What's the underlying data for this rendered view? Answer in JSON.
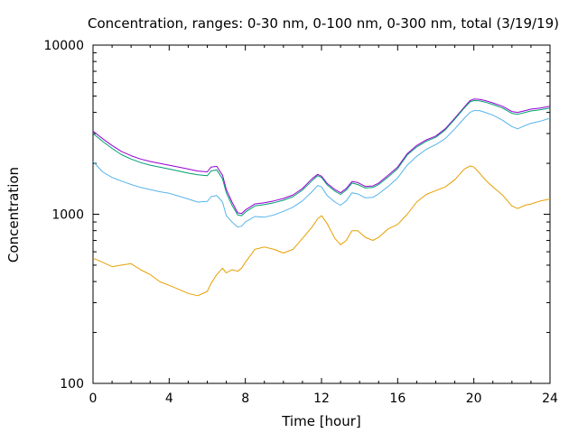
{
  "chart_data": {
    "type": "line",
    "title": "Concentration, ranges: 0-30 nm, 0-100 nm, 0-300 nm, total (3/19/19)",
    "xlabel": "Time [hour]",
    "ylabel": "Concentration",
    "xlim": [
      0,
      24
    ],
    "ylim": [
      100,
      10000
    ],
    "yscale": "log",
    "grid": false,
    "legend": "none",
    "x_ticks": [
      "0",
      "4",
      "8",
      "12",
      "16",
      "20",
      "24"
    ],
    "y_ticks": [
      "100",
      "1000",
      "10000"
    ],
    "x_tick_values": [
      0,
      4,
      8,
      12,
      16,
      20,
      24
    ],
    "y_tick_values": [
      100,
      1000,
      10000
    ],
    "x": [
      0,
      0.5,
      1,
      1.5,
      2,
      2.5,
      3,
      3.5,
      4,
      4.5,
      5,
      5.5,
      6,
      6.2,
      6.5,
      6.8,
      7,
      7.3,
      7.6,
      7.8,
      8,
      8.5,
      9,
      9.5,
      10,
      10.5,
      11,
      11.5,
      11.8,
      12,
      12.3,
      12.7,
      13,
      13.3,
      13.6,
      13.9,
      14.3,
      14.7,
      15,
      15.5,
      16,
      16.5,
      17,
      17.5,
      18,
      18.5,
      19,
      19.5,
      19.8,
      20,
      20.3,
      20.6,
      21,
      21.5,
      22,
      22.3,
      22.7,
      23,
      23.5,
      24
    ],
    "series": [
      {
        "color": "#9400d3",
        "values": [
          3100,
          2800,
          2550,
          2350,
          2220,
          2120,
          2050,
          2000,
          1950,
          1900,
          1850,
          1800,
          1780,
          1900,
          1920,
          1700,
          1400,
          1180,
          1020,
          1010,
          1060,
          1150,
          1170,
          1200,
          1240,
          1300,
          1420,
          1620,
          1720,
          1680,
          1520,
          1400,
          1340,
          1420,
          1560,
          1540,
          1460,
          1470,
          1530,
          1700,
          1900,
          2280,
          2550,
          2750,
          2900,
          3200,
          3700,
          4300,
          4700,
          4800,
          4780,
          4700,
          4550,
          4350,
          4050,
          4000,
          4100,
          4180,
          4250,
          4350
        ]
      },
      {
        "color": "#009e73",
        "values": [
          3000,
          2700,
          2450,
          2250,
          2120,
          2020,
          1950,
          1900,
          1850,
          1800,
          1750,
          1710,
          1690,
          1800,
          1830,
          1620,
          1340,
          1130,
          990,
          980,
          1030,
          1120,
          1140,
          1170,
          1210,
          1270,
          1390,
          1580,
          1690,
          1650,
          1490,
          1370,
          1310,
          1390,
          1530,
          1500,
          1430,
          1440,
          1500,
          1660,
          1860,
          2240,
          2500,
          2700,
          2850,
          3150,
          3650,
          4250,
          4620,
          4700,
          4680,
          4600,
          4450,
          4250,
          3950,
          3900,
          4000,
          4080,
          4150,
          4250
        ]
      },
      {
        "color": "#56b4e9",
        "values": [
          2050,
          1780,
          1650,
          1570,
          1500,
          1440,
          1400,
          1360,
          1330,
          1280,
          1230,
          1180,
          1190,
          1270,
          1290,
          1180,
          980,
          900,
          840,
          850,
          900,
          970,
          960,
          990,
          1040,
          1100,
          1200,
          1360,
          1480,
          1450,
          1290,
          1180,
          1130,
          1200,
          1340,
          1320,
          1250,
          1260,
          1320,
          1460,
          1640,
          1950,
          2200,
          2420,
          2580,
          2800,
          3200,
          3700,
          4000,
          4100,
          4100,
          4000,
          3850,
          3600,
          3300,
          3200,
          3350,
          3450,
          3550,
          3700
        ]
      },
      {
        "color": "#e69f00",
        "values": [
          550,
          520,
          490,
          500,
          510,
          470,
          440,
          400,
          380,
          360,
          340,
          330,
          350,
          390,
          440,
          480,
          450,
          470,
          460,
          480,
          520,
          620,
          640,
          620,
          590,
          620,
          720,
          840,
          940,
          980,
          880,
          720,
          660,
          700,
          800,
          800,
          730,
          700,
          730,
          820,
          870,
          1000,
          1180,
          1310,
          1380,
          1450,
          1600,
          1850,
          1930,
          1900,
          1750,
          1600,
          1450,
          1300,
          1120,
          1080,
          1130,
          1150,
          1200,
          1230
        ]
      }
    ]
  }
}
